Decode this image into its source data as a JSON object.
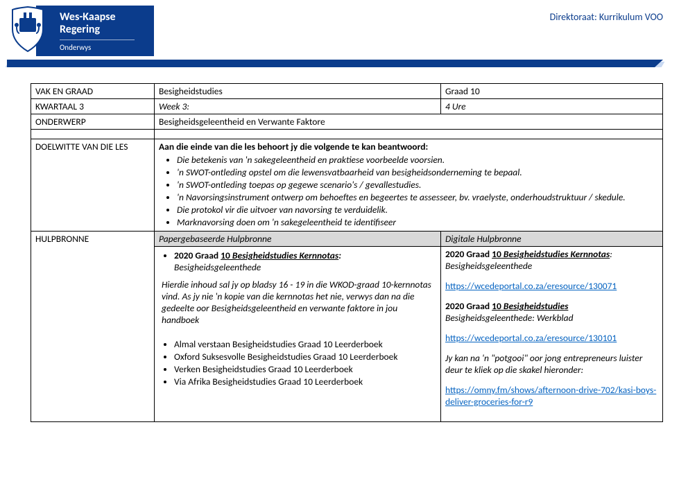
{
  "header": {
    "brand_line1": "Wes-Kaapse",
    "brand_line2": "Regering",
    "brand_sub": "Onderwys",
    "directorate": "Direktoraat: Kurrikulum VOO",
    "brand_bg": "#0b3c8c",
    "brand_text": "#ffffff",
    "band_front": "#0b3c8c",
    "band_back": "#c9d9f2"
  },
  "rows": {
    "vak_label": "VAK EN GRAAD",
    "vak_subject": "Besigheidstudies",
    "vak_grade": "Graad 10",
    "kwartaal_label": "KWARTAAL 3",
    "kwartaal_week": "Week 3:",
    "kwartaal_hours": "4 Ure",
    "onderwerp_label": "ONDERWERP",
    "onderwerp_value": "Besigheidsgeleentheid en Verwante Faktore",
    "doelwitte_label": "DOELWITTE VAN DIE LES",
    "doelwitte_intro": "Aan die einde van die les behoort jy die volgende te kan beantwoord:",
    "doelwitte_items": [
      "Die betekenis van 'n sakegeleentheid en praktiese voorbeelde voorsien.",
      "'n SWOT-ontleding opstel om die lewensvatbaarheid van besigheidsonderneming te bepaal.",
      "'n SWOT-ontleding toepas op gegewe scenario's / gevallestudies.",
      "'n Navorsingsinstrument ontwerp om behoeftes en begeertes te assesseer, bv. vraelyste, onderhoudstruktuur / skedule.",
      "Die protokol vir die uitvoer van navorsing te verduidelik.",
      "Marknavorsing doen om 'n sakegeleentheid te identifiseer"
    ],
    "hulpbronne_label": "HULPBRONNE",
    "paper_head": "Papergebaseerde Hulpbronne",
    "digital_head": "Digitale Hulpbronne",
    "paper": {
      "r1_prefix": "2020 Graad ",
      "r1_num": "10",
      "r1_mid": " Besigheidstudies Kernnotas",
      "r1_suffix": ":",
      "r1_sub": "Besigheidsgeleenthede",
      "note": "Hierdie inhoud sal jy op bladsy 16 - 19 in die WKOD-graad 10-kernnotas vind. As jy nie 'n kopie van die kernnotas het nie, verwys dan na die gedeelte oor Besigheidsgeleentheid en verwante faktore in jou handboek",
      "books": [
        "Almal verstaan Besigheidstudies Graad 10 Leerderboek",
        "Oxford Suksesvolle Besigheidstudies Graad 10 Leerderboek",
        "Verken Besigheidstudies Graad 10 Leerderboek",
        "Via Afrika Besigheidstudies Graad 10 Leerderboek"
      ]
    },
    "digital": {
      "r1_prefix": "2020 Graad ",
      "r1_num": "10",
      "r1_mid": " Besigheidstudies Kernnotas",
      "r1_suffix": ":",
      "r1_sub": "Besigheidsgeleenthede",
      "link1": "https://wcedeportal.co.za/eresource/130071",
      "r2_prefix": "2020 Graad ",
      "r2_num": "10",
      "r2_mid": " Besigheidstudies ",
      "r2_tail": "Besigheidsgeleenthede: Werkblad",
      "link2": "https://wcedeportal.co.za/eresource/130101",
      "podcast_note": "Jy kan na 'n \"potgooi\" oor jong entrepreneurs luister deur te kliek op die skakel hieronder:",
      "link3": "https://omny.fm/shows/afternoon-drive-702/kasi-boys-deliver-groceries-for-r9"
    }
  },
  "colors": {
    "link": "#0563c1",
    "grey_head": "#d9d9d9",
    "border": "#000000"
  }
}
